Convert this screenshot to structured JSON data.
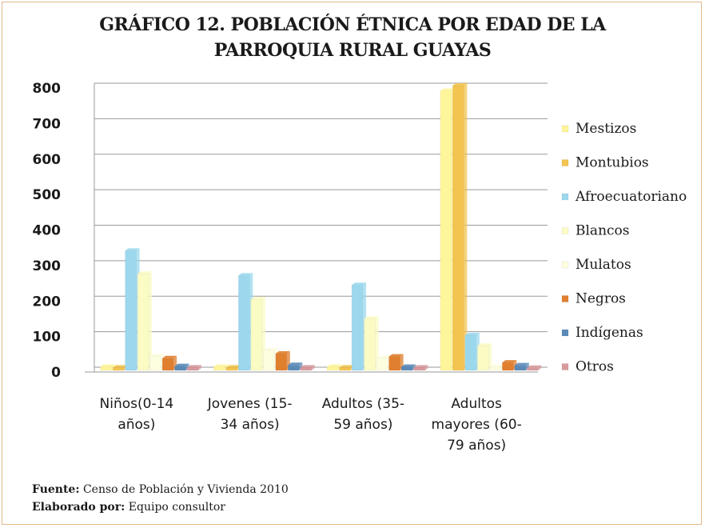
{
  "chart_data": {
    "type": "bar",
    "title_line1": "GRÁFICO 12. POBLACIÓN ÉTNICA POR EDAD DE LA",
    "title_line2": "PARROQUIA RURAL GUAYAS",
    "categories": [
      [
        "Niños(0-14",
        "años)"
      ],
      [
        "Jovenes (15-",
        "34 años)"
      ],
      [
        "Adultos (35-",
        "59 años)"
      ],
      [
        "Adultos",
        "mayores (60-",
        "79 años)"
      ]
    ],
    "ylim": [
      0,
      800
    ],
    "yticks": [
      "0",
      "100",
      "200",
      "300",
      "400",
      "500",
      "600",
      "700",
      "800"
    ],
    "grid": true,
    "legend_position": "right",
    "series": [
      {
        "name": "Mestizos",
        "color": "#fff59a",
        "values": [
          8,
          8,
          8,
          785
        ]
      },
      {
        "name": "Montubios",
        "color": "#f3c44f",
        "values": [
          6,
          6,
          6,
          800
        ]
      },
      {
        "name": "Afroecuatoriano",
        "color": "#9bd8ee",
        "values": [
          335,
          265,
          238,
          97
        ]
      },
      {
        "name": "Blancos",
        "color": "#fbfbc4",
        "values": [
          270,
          198,
          143,
          67
        ]
      },
      {
        "name": "Mulatos",
        "color": "#fdfde0",
        "values": [
          38,
          55,
          33,
          8
        ]
      },
      {
        "name": "Negros",
        "color": "#e07f2e",
        "values": [
          32,
          45,
          37,
          20
        ]
      },
      {
        "name": "Indígenas",
        "color": "#5a8ab8",
        "values": [
          10,
          13,
          8,
          12
        ]
      },
      {
        "name": "Otros",
        "color": "#d99a9e",
        "values": [
          6,
          6,
          6,
          5
        ]
      }
    ]
  },
  "footer": {
    "source_label": "Fuente:",
    "source_text": " Censo de Población  y Vivienda 2010",
    "author_label": "Elaborado por:",
    "author_text": " Equipo consultor"
  }
}
